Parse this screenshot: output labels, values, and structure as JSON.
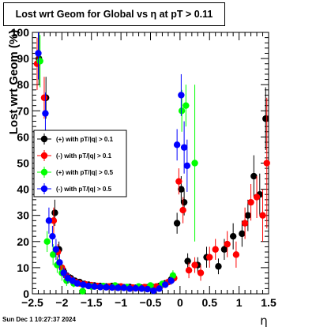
{
  "timestamp": "Sun Dec  1 10:27:37 2024",
  "chart_data": {
    "type": "scatter",
    "title": "Lost wrt Geom for Global vs    η  at pT > 0.11",
    "xlabel": "η",
    "ylabel": "Lost wrt Geom (%)",
    "xlim": [
      -2.5,
      1.5
    ],
    "ylim": [
      0,
      100
    ],
    "x_ticks": [
      -2.5,
      -2,
      -1.5,
      -1,
      -0.5,
      0,
      0.5,
      1,
      1.5
    ],
    "x_tick_labels": [
      "−2.5",
      "−2",
      "−1.5",
      "−1",
      "−0.5",
      "0",
      "0.5",
      "1",
      "1.5"
    ],
    "y_ticks": [
      0,
      10,
      20,
      30,
      40,
      50,
      60,
      70,
      80,
      90,
      100
    ],
    "y_tick_labels": [
      "0",
      "10",
      "20",
      "30",
      "40",
      "50",
      "60",
      "70",
      "80",
      "90",
      "100"
    ],
    "grid": false,
    "legend_position": "middle-left",
    "series": [
      {
        "name": "(+) with pT/|q| > 0.1",
        "color": "#000000",
        "points": [
          {
            "x": -2.39,
            "y": 90,
            "err": 10
          },
          {
            "x": -2.27,
            "y": 75,
            "err": 8
          },
          {
            "x": -2.18,
            "y": 45,
            "err": 6
          },
          {
            "x": -2.12,
            "y": 31,
            "err": 5
          },
          {
            "x": -2.05,
            "y": 17,
            "err": 3
          },
          {
            "x": -1.98,
            "y": 9,
            "err": 2
          },
          {
            "x": -1.92,
            "y": 7,
            "err": 2
          },
          {
            "x": -1.85,
            "y": 6,
            "err": 1.5
          },
          {
            "x": -1.78,
            "y": 5,
            "err": 1.2
          },
          {
            "x": -1.7,
            "y": 4.5,
            "err": 1
          },
          {
            "x": -1.62,
            "y": 3.8,
            "err": 1
          },
          {
            "x": -1.55,
            "y": 3.5,
            "err": 0.8
          },
          {
            "x": -1.45,
            "y": 3.2,
            "err": 0.8
          },
          {
            "x": -1.35,
            "y": 3.0,
            "err": 0.7
          },
          {
            "x": -1.25,
            "y": 2.8,
            "err": 0.7
          },
          {
            "x": -1.15,
            "y": 3.0,
            "err": 0.7
          },
          {
            "x": -1.05,
            "y": 2.7,
            "err": 0.6
          },
          {
            "x": -0.95,
            "y": 2.5,
            "err": 0.6
          },
          {
            "x": -0.85,
            "y": 2.6,
            "err": 0.6
          },
          {
            "x": -0.75,
            "y": 2.3,
            "err": 0.6
          },
          {
            "x": -0.65,
            "y": 2.4,
            "err": 0.6
          },
          {
            "x": -0.55,
            "y": 2.5,
            "err": 0.6
          },
          {
            "x": -0.45,
            "y": 2.6,
            "err": 0.7
          },
          {
            "x": -0.35,
            "y": 3.0,
            "err": 0.8
          },
          {
            "x": -0.25,
            "y": 4.0,
            "err": 1
          },
          {
            "x": -0.15,
            "y": 5.5,
            "err": 1.5
          },
          {
            "x": -0.05,
            "y": 27,
            "err": 4
          },
          {
            "x": 0.02,
            "y": 40,
            "err": 5
          },
          {
            "x": 0.07,
            "y": 35,
            "err": 5
          },
          {
            "x": 0.13,
            "y": 12.5,
            "err": 3
          },
          {
            "x": 0.3,
            "y": 11,
            "err": 3
          },
          {
            "x": 0.45,
            "y": 14,
            "err": 4
          },
          {
            "x": 0.65,
            "y": 10.5,
            "err": 3
          },
          {
            "x": 0.75,
            "y": 17,
            "err": 4
          },
          {
            "x": 0.9,
            "y": 22,
            "err": 5
          },
          {
            "x": 1.05,
            "y": 23,
            "err": 5
          },
          {
            "x": 1.15,
            "y": 30,
            "err": 6
          },
          {
            "x": 1.25,
            "y": 45,
            "err": 8
          },
          {
            "x": 1.35,
            "y": 38,
            "err": 8
          },
          {
            "x": 1.45,
            "y": 67,
            "err": 12
          }
        ]
      },
      {
        "name": "(-) with pT/|q| > 0.1",
        "color": "#ff0000",
        "points": [
          {
            "x": -2.42,
            "y": 88,
            "err": 10
          },
          {
            "x": -2.3,
            "y": 75,
            "err": 8
          },
          {
            "x": -2.2,
            "y": 43,
            "err": 6
          },
          {
            "x": -2.14,
            "y": 28,
            "err": 5
          },
          {
            "x": -2.07,
            "y": 16,
            "err": 3
          },
          {
            "x": -2.0,
            "y": 10,
            "err": 2
          },
          {
            "x": -1.93,
            "y": 7,
            "err": 2
          },
          {
            "x": -1.85,
            "y": 5.5,
            "err": 1.5
          },
          {
            "x": -1.77,
            "y": 4.5,
            "err": 1.2
          },
          {
            "x": -1.7,
            "y": 4.0,
            "err": 1
          },
          {
            "x": -1.6,
            "y": 3.6,
            "err": 1
          },
          {
            "x": -1.5,
            "y": 3.3,
            "err": 0.8
          },
          {
            "x": -1.4,
            "y": 3.0,
            "err": 0.8
          },
          {
            "x": -1.3,
            "y": 2.9,
            "err": 0.7
          },
          {
            "x": -1.2,
            "y": 2.8,
            "err": 0.7
          },
          {
            "x": -1.1,
            "y": 2.7,
            "err": 0.7
          },
          {
            "x": -1.0,
            "y": 2.8,
            "err": 0.6
          },
          {
            "x": -0.9,
            "y": 2.5,
            "err": 0.6
          },
          {
            "x": -0.8,
            "y": 2.4,
            "err": 0.6
          },
          {
            "x": -0.7,
            "y": 2.5,
            "err": 0.6
          },
          {
            "x": -0.6,
            "y": 2.6,
            "err": 0.6
          },
          {
            "x": -0.5,
            "y": 2.4,
            "err": 0.6
          },
          {
            "x": -0.4,
            "y": 2.8,
            "err": 0.7
          },
          {
            "x": -0.3,
            "y": 3.5,
            "err": 0.8
          },
          {
            "x": -0.2,
            "y": 4.5,
            "err": 1.2
          },
          {
            "x": -0.1,
            "y": 6.0,
            "err": 1.5
          },
          {
            "x": -0.02,
            "y": 43,
            "err": 5
          },
          {
            "x": 0.05,
            "y": 32,
            "err": 5
          },
          {
            "x": 0.15,
            "y": 9,
            "err": 3
          },
          {
            "x": 0.25,
            "y": 11,
            "err": 3
          },
          {
            "x": 0.35,
            "y": 8,
            "err": 3
          },
          {
            "x": 0.5,
            "y": 14,
            "err": 4
          },
          {
            "x": 0.6,
            "y": 17,
            "err": 4
          },
          {
            "x": 0.8,
            "y": 19,
            "err": 5
          },
          {
            "x": 0.95,
            "y": 15,
            "err": 5
          },
          {
            "x": 1.1,
            "y": 27,
            "err": 6
          },
          {
            "x": 1.2,
            "y": 35,
            "err": 7
          },
          {
            "x": 1.3,
            "y": 37,
            "err": 8
          },
          {
            "x": 1.4,
            "y": 30,
            "err": 10
          },
          {
            "x": 1.47,
            "y": 50,
            "err": 25
          }
        ]
      },
      {
        "name": "(+) with pT/|q| > 0.5",
        "color": "#00ff00",
        "points": [
          {
            "x": -2.37,
            "y": 89,
            "err": 10
          },
          {
            "x": -2.25,
            "y": 20,
            "err": 4
          },
          {
            "x": -2.15,
            "y": 15,
            "err": 4
          },
          {
            "x": -2.08,
            "y": 11,
            "err": 3
          },
          {
            "x": -2.0,
            "y": 8,
            "err": 3
          },
          {
            "x": -1.92,
            "y": 5,
            "err": 2
          },
          {
            "x": -1.8,
            "y": 4,
            "err": 1.5
          },
          {
            "x": -1.65,
            "y": 1,
            "err": 1
          },
          {
            "x": -1.5,
            "y": 2.8,
            "err": 0.8
          },
          {
            "x": -1.3,
            "y": 3.0,
            "err": 0.8
          },
          {
            "x": -1.1,
            "y": 3.2,
            "err": 0.8
          },
          {
            "x": -0.9,
            "y": 2.6,
            "err": 0.7
          },
          {
            "x": -0.7,
            "y": 2.8,
            "err": 0.7
          },
          {
            "x": -0.5,
            "y": 3.2,
            "err": 0.8
          },
          {
            "x": -0.3,
            "y": 3.8,
            "err": 1
          },
          {
            "x": -0.12,
            "y": 7,
            "err": 2
          },
          {
            "x": 0.03,
            "y": 70,
            "err": 8
          },
          {
            "x": 0.1,
            "y": 72,
            "err": 8
          },
          {
            "x": 0.25,
            "y": 50,
            "err": 30
          }
        ]
      },
      {
        "name": "(-) with pT/|q| > 0.5",
        "color": "#0000ff",
        "points": [
          {
            "x": -2.4,
            "y": 92,
            "err": 10
          },
          {
            "x": -2.28,
            "y": 69,
            "err": 8
          },
          {
            "x": -2.22,
            "y": 28,
            "err": 5
          },
          {
            "x": -2.16,
            "y": 22,
            "err": 4
          },
          {
            "x": -2.1,
            "y": 17,
            "err": 4
          },
          {
            "x": -2.04,
            "y": 12,
            "err": 3
          },
          {
            "x": -1.97,
            "y": 8,
            "err": 2
          },
          {
            "x": -1.9,
            "y": 6,
            "err": 2
          },
          {
            "x": -1.82,
            "y": 5,
            "err": 1.5
          },
          {
            "x": -1.74,
            "y": 4,
            "err": 1.2
          },
          {
            "x": -1.64,
            "y": 3.5,
            "err": 1
          },
          {
            "x": -1.55,
            "y": 3.0,
            "err": 0.9
          },
          {
            "x": -1.45,
            "y": 2.8,
            "err": 0.8
          },
          {
            "x": -1.35,
            "y": 2.6,
            "err": 0.8
          },
          {
            "x": -1.25,
            "y": 2.5,
            "err": 0.7
          },
          {
            "x": -1.15,
            "y": 2.4,
            "err": 0.7
          },
          {
            "x": -1.05,
            "y": 2.3,
            "err": 0.7
          },
          {
            "x": -0.95,
            "y": 2.3,
            "err": 0.7
          },
          {
            "x": -0.85,
            "y": 2.0,
            "err": 0.6
          },
          {
            "x": -0.75,
            "y": 2.1,
            "err": 0.6
          },
          {
            "x": -0.65,
            "y": 2.0,
            "err": 0.6
          },
          {
            "x": -0.55,
            "y": 1.8,
            "err": 0.6
          },
          {
            "x": -0.45,
            "y": 1.2,
            "err": 0.5
          },
          {
            "x": -0.35,
            "y": 2.0,
            "err": 0.7
          },
          {
            "x": -0.25,
            "y": 3.5,
            "err": 1
          },
          {
            "x": -0.15,
            "y": 5.0,
            "err": 1.5
          },
          {
            "x": -0.05,
            "y": 57,
            "err": 6
          },
          {
            "x": 0.02,
            "y": 76,
            "err": 8
          },
          {
            "x": 0.07,
            "y": 56,
            "err": 10
          },
          {
            "x": 0.12,
            "y": 49,
            "err": 10
          }
        ]
      }
    ]
  }
}
